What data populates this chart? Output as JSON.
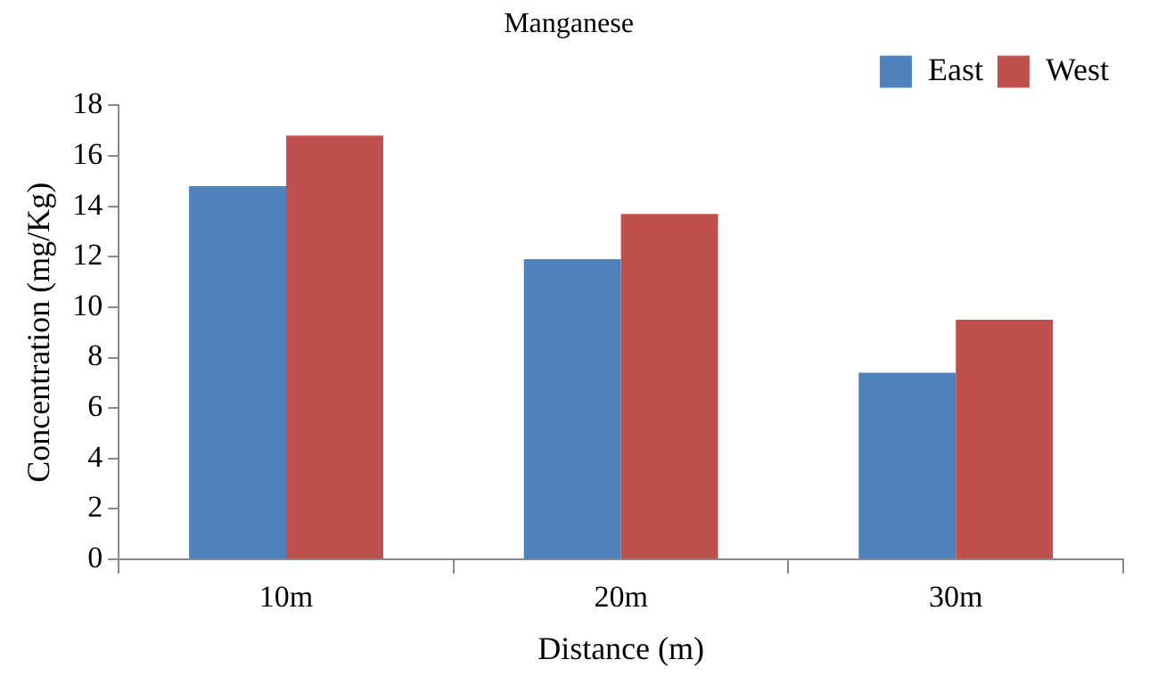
{
  "chart_data": {
    "type": "bar",
    "title": "Manganese",
    "xlabel": "Distance (m)",
    "ylabel": "Concentration (mg/Kg)",
    "categories": [
      "10m",
      "20m",
      "30m"
    ],
    "series": [
      {
        "name": "East",
        "color": "#4f81bd",
        "values": [
          14.8,
          11.9,
          7.4
        ]
      },
      {
        "name": "West",
        "color": "#c0504d",
        "values": [
          16.8,
          13.7,
          9.5
        ]
      }
    ],
    "ylim": [
      0,
      18
    ],
    "yticks": [
      0,
      2,
      4,
      6,
      8,
      10,
      12,
      14,
      16,
      18
    ],
    "grid": false,
    "legend": "top right"
  }
}
